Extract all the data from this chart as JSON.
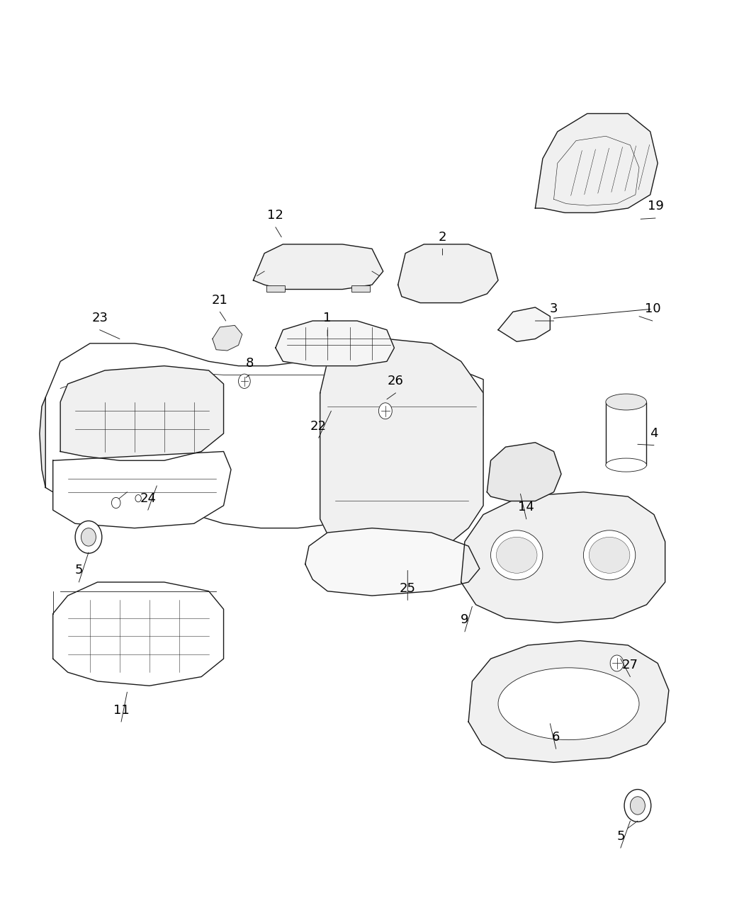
{
  "bg_color": "#ffffff",
  "line_color": "#1a1a1a",
  "label_color": "#000000",
  "fig_width": 10.5,
  "fig_height": 12.75,
  "dpi": 100
}
